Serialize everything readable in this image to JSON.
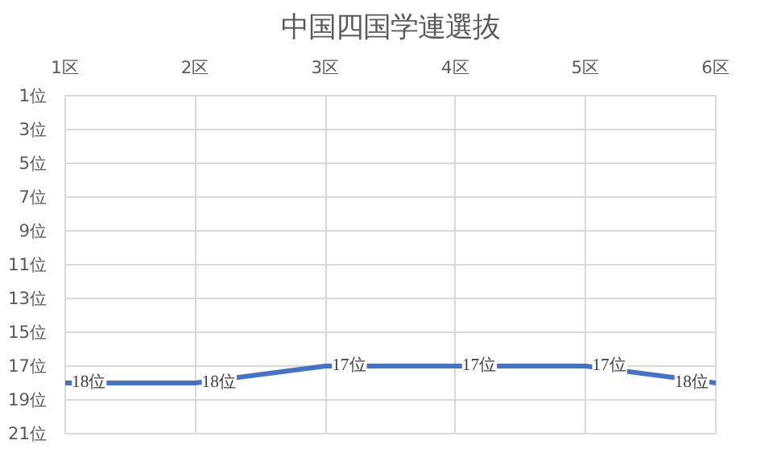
{
  "chart_data": {
    "type": "line",
    "title": "中国四国学連選抜",
    "categories": [
      "1区",
      "2区",
      "3区",
      "4区",
      "5区",
      "6区"
    ],
    "series": [
      {
        "color": "#4472c4",
        "values": [
          18,
          18,
          17,
          17,
          17,
          18
        ],
        "value_labels": [
          "18位",
          "18位",
          "17位",
          "17位",
          "17位",
          "18位"
        ]
      }
    ],
    "ylim": [
      21,
      1
    ],
    "yticks": [
      {
        "value": 1,
        "label": "1位"
      },
      {
        "value": 3,
        "label": "3位"
      },
      {
        "value": 5,
        "label": "5位"
      },
      {
        "value": 7,
        "label": "7位"
      },
      {
        "value": 9,
        "label": "9位"
      },
      {
        "value": 11,
        "label": "11位"
      },
      {
        "value": 13,
        "label": "13位"
      },
      {
        "value": 15,
        "label": "15位"
      },
      {
        "value": 17,
        "label": "17位"
      },
      {
        "value": 19,
        "label": "19位"
      },
      {
        "value": 21,
        "label": "21位"
      }
    ],
    "grid": true,
    "marker": "none",
    "line_style": "solid"
  }
}
